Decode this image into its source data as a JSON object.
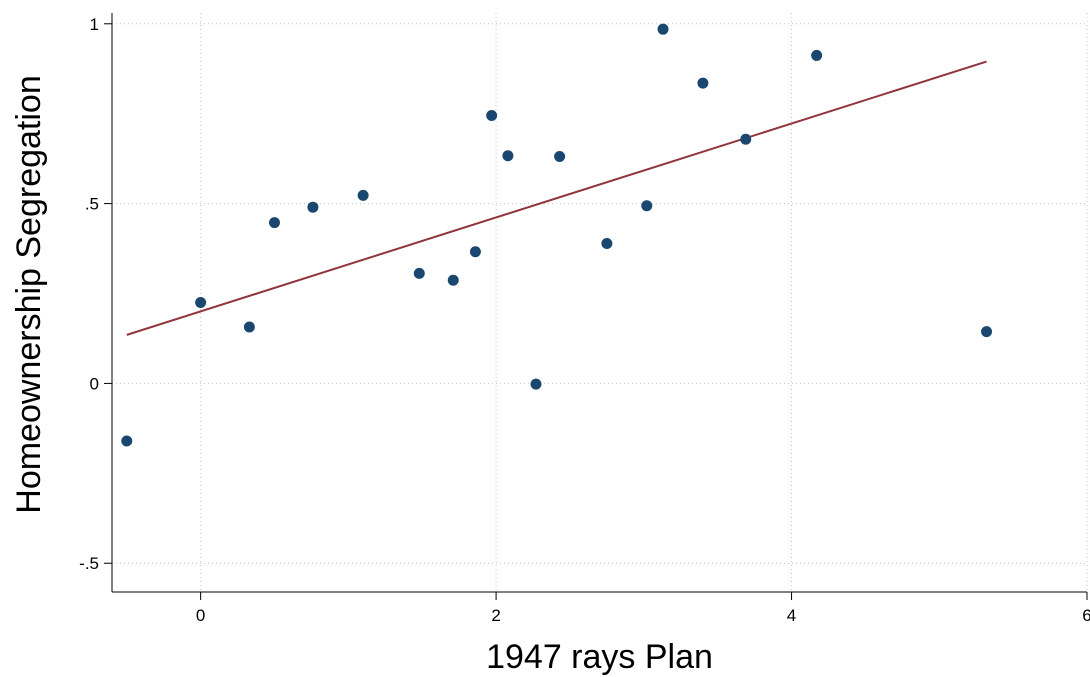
{
  "chart_data": {
    "type": "scatter",
    "title": "",
    "xlabel": "1947 rays Plan",
    "ylabel": "Homeownership Segregation",
    "xlim": [
      -0.6,
      6.0
    ],
    "ylim": [
      -0.58,
      1.03
    ],
    "xticks": [
      {
        "value": 0,
        "label": "0"
      },
      {
        "value": 2,
        "label": "2"
      },
      {
        "value": 4,
        "label": "4"
      },
      {
        "value": 6,
        "label": "6"
      }
    ],
    "yticks": [
      {
        "value": -0.5,
        "label": "-.5"
      },
      {
        "value": 0,
        "label": "0"
      },
      {
        "value": 0.5,
        "label": ".5"
      },
      {
        "value": 1,
        "label": "1"
      }
    ],
    "grid": true,
    "legend": "none",
    "series": [
      {
        "kind": "scatter",
        "color": "#1a476f",
        "points": [
          {
            "x": -0.5,
            "y": -0.16
          },
          {
            "x": 0.0,
            "y": 0.225
          },
          {
            "x": 0.33,
            "y": 0.157
          },
          {
            "x": 0.5,
            "y": 0.447
          },
          {
            "x": 0.76,
            "y": 0.49
          },
          {
            "x": 1.1,
            "y": 0.523
          },
          {
            "x": 1.48,
            "y": 0.306
          },
          {
            "x": 1.71,
            "y": 0.287
          },
          {
            "x": 1.86,
            "y": 0.366
          },
          {
            "x": 1.97,
            "y": 0.745
          },
          {
            "x": 2.08,
            "y": 0.633
          },
          {
            "x": 2.27,
            "y": -0.002
          },
          {
            "x": 2.43,
            "y": 0.631
          },
          {
            "x": 2.75,
            "y": 0.389
          },
          {
            "x": 3.02,
            "y": 0.494
          },
          {
            "x": 3.13,
            "y": 0.985
          },
          {
            "x": 3.4,
            "y": 0.835
          },
          {
            "x": 3.69,
            "y": 0.679
          },
          {
            "x": 4.17,
            "y": 0.912
          },
          {
            "x": 5.32,
            "y": 0.144
          }
        ]
      },
      {
        "kind": "line",
        "color": "#90353b",
        "points": [
          {
            "x": -0.5,
            "y": 0.135
          },
          {
            "x": 5.32,
            "y": 0.895
          }
        ]
      }
    ]
  }
}
